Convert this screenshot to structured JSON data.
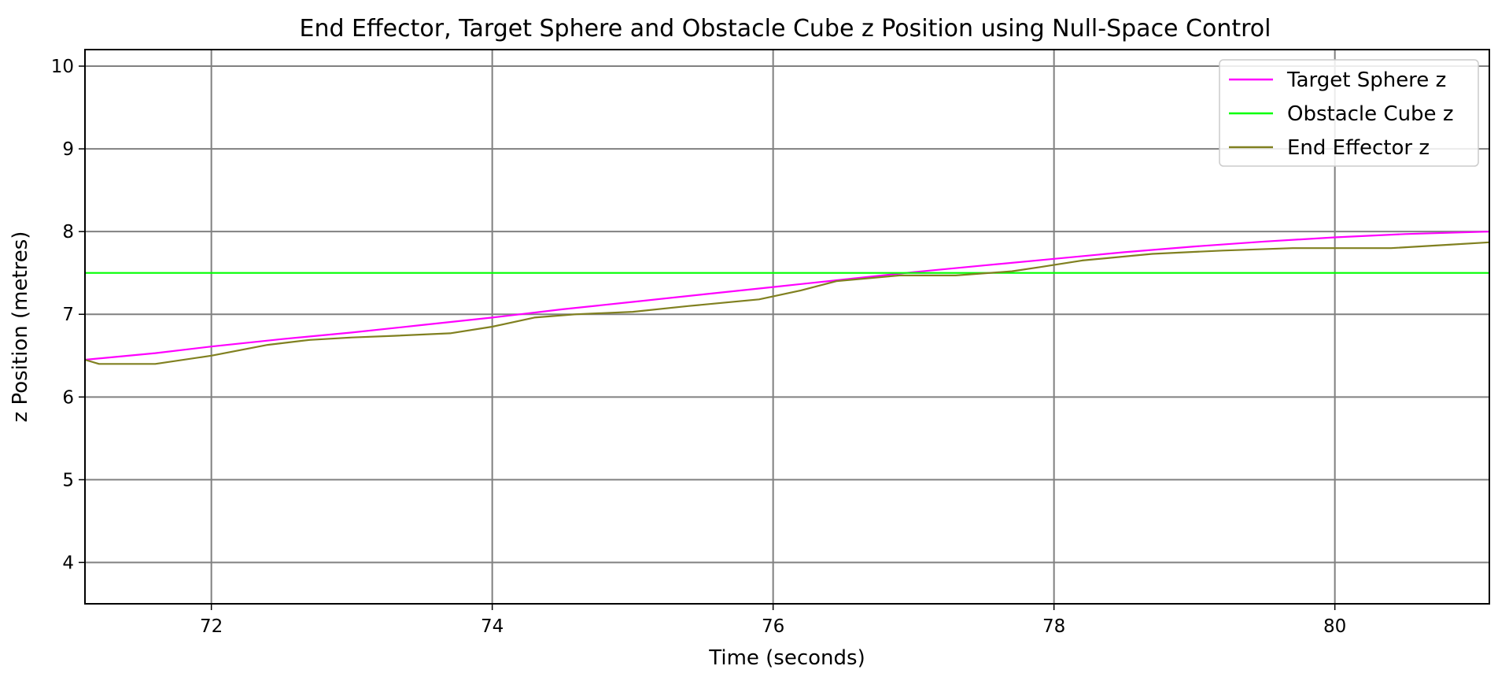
{
  "chart_data": {
    "type": "line",
    "title": "End Effector, Target Sphere and Obstacle Cube z Position using Null-Space Control",
    "xlabel": "Time (seconds)",
    "ylabel": "z Position (metres)",
    "xlim": [
      71.1,
      81.1
    ],
    "ylim": [
      3.5,
      10.2
    ],
    "xticks": [
      72,
      74,
      76,
      78,
      80
    ],
    "yticks": [
      4,
      5,
      6,
      7,
      8,
      9,
      10
    ],
    "grid": true,
    "legend_position": "top-right",
    "series": [
      {
        "name": "Target Sphere z",
        "color": "#ff00ff",
        "x": [
          71.1,
          71.6,
          72.0,
          72.5,
          73.0,
          73.5,
          74.0,
          74.5,
          75.0,
          75.5,
          76.0,
          76.5,
          77.0,
          77.5,
          78.0,
          78.5,
          79.0,
          79.5,
          80.0,
          80.5,
          81.1
        ],
        "y": [
          6.45,
          6.53,
          6.61,
          6.7,
          6.78,
          6.87,
          6.96,
          7.06,
          7.15,
          7.24,
          7.33,
          7.42,
          7.51,
          7.59,
          7.67,
          7.75,
          7.82,
          7.88,
          7.93,
          7.97,
          8.0
        ]
      },
      {
        "name": "Obstacle Cube z",
        "color": "#00ff00",
        "x": [
          71.1,
          81.1
        ],
        "y": [
          7.5,
          7.5
        ]
      },
      {
        "name": "End Effector z",
        "color": "#808020",
        "x": [
          71.1,
          71.2,
          71.6,
          72.0,
          72.4,
          72.7,
          73.0,
          73.3,
          73.7,
          74.0,
          74.3,
          74.6,
          75.0,
          75.4,
          75.9,
          76.2,
          76.45,
          76.9,
          77.3,
          77.7,
          77.9,
          78.2,
          78.7,
          79.2,
          79.7,
          80.0,
          80.4,
          80.8,
          81.1
        ],
        "y": [
          6.45,
          6.4,
          6.4,
          6.5,
          6.63,
          6.69,
          6.72,
          6.74,
          6.77,
          6.85,
          6.96,
          7.0,
          7.03,
          7.1,
          7.18,
          7.29,
          7.4,
          7.47,
          7.47,
          7.52,
          7.57,
          7.65,
          7.73,
          7.77,
          7.8,
          7.8,
          7.8,
          7.84,
          7.87
        ]
      }
    ]
  }
}
